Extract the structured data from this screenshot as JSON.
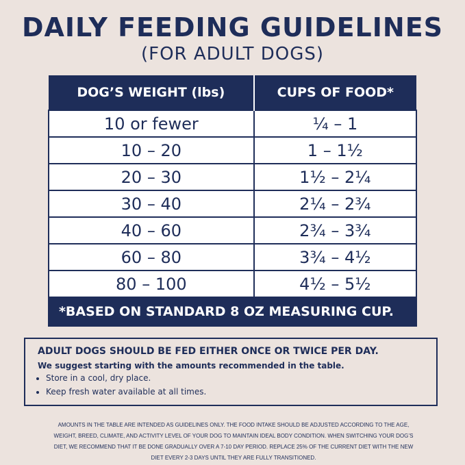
{
  "header": {
    "title": "DAILY FEEDING GUIDELINES",
    "subtitle": "(FOR ADULT DOGS)"
  },
  "table": {
    "columns": [
      "DOG’S WEIGHT (lbs)",
      "CUPS OF FOOD*"
    ],
    "rows": [
      [
        "10 or fewer",
        "¼ – 1"
      ],
      [
        "10 – 20",
        "1 – 1½"
      ],
      [
        "20 – 30",
        "1½ – 2¼"
      ],
      [
        "30 – 40",
        "2¼ – 2¾"
      ],
      [
        "40 – 60",
        "2¾ – 3¾"
      ],
      [
        "60 – 80",
        "3¾ – 4½"
      ],
      [
        "80 – 100",
        "4½ – 5½"
      ]
    ],
    "footnote": "*BASED ON STANDARD 8 OZ MEASURING CUP."
  },
  "notes": {
    "heading": "ADULT DOGS SHOULD BE FED EITHER ONCE OR TWICE PER DAY.",
    "intro": "We suggest starting with the amounts recommended in the table.",
    "bullets": [
      "Store in a cool, dry place.",
      "Keep fresh water available at all times."
    ]
  },
  "disclaimer": "AMOUNTS IN THE TABLE ARE INTENDED AS GUIDELINES ONLY. THE FOOD INTAKE SHOULD BE ADJUSTED ACCORDING TO THE AGE, WEIGHT, BREED, CLIMATE, AND ACTIVITY LEVEL OF YOUR DOG TO MAINTAIN IDEAL BODY CONDITION. WHEN SWITCHING YOUR DOG’S DIET, WE RECOMMEND THAT IT BE DONE GRADUALLY OVER A 7-10 DAY PERIOD. REPLACE 25% OF THE CURRENT DIET WITH THE NEW DIET EVERY 2-3 DAYS UNTIL THEY ARE FULLY TRANSITIONED."
}
